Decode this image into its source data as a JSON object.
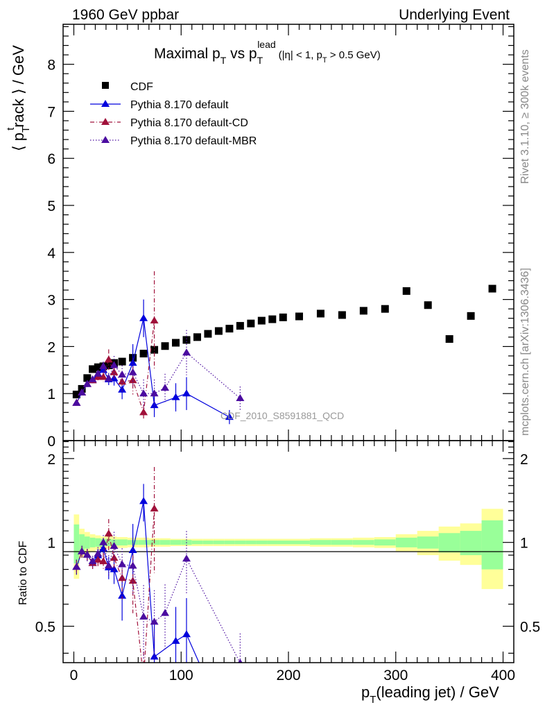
{
  "header": {
    "left": "1960 GeV ppbar",
    "right": "Underlying Event"
  },
  "side": {
    "rivet": "Rivet 3.1.10, ≥ 300k events",
    "mcplots": "mcplots.cern.ch [arXiv:1306.3436]"
  },
  "watermark": "CDF_2010_S8591881_QCD",
  "chart_data": {
    "type": "scatter",
    "title": "Maximal p_T vs p_T^lead (|η| < 1, p_T > 0.5 GeV)",
    "title_main": "Maximal p",
    "title_sub_T": "T",
    "title_vs": " vs p",
    "title_sup": "lead",
    "title_cut": "(|η| < 1, p",
    "title_cut_end": " > 0.5 GeV)",
    "xlabel": "p_T(leading jet) / GeV",
    "xlabel_parts": {
      "p": "p",
      "sub": "T",
      "rest": "(leading jet) / GeV"
    },
    "ylabel": "⟨ p_T^track ⟩ / GeV",
    "ylabel_parts": {
      "open": "⟨ p",
      "sub": "T",
      "sup": "t",
      "rest": "rack ⟩ / GeV"
    },
    "ratio_ylabel": "Ratio to CDF",
    "xlim": [
      -10,
      410
    ],
    "ylim": [
      0,
      8.85
    ],
    "ratio_ylim": [
      0.37,
      2.32
    ],
    "x_ticks": [
      0,
      100,
      200,
      300,
      400
    ],
    "y_ticks": [
      0,
      1,
      2,
      3,
      4,
      5,
      6,
      7,
      8
    ],
    "ratio_ticks": [
      0.5,
      1,
      2
    ],
    "legend": {
      "placement": "top-left"
    },
    "colors": {
      "cdf": "#000000",
      "default": "#0000dd",
      "cd": "#a0103a",
      "mbr": "#4b0ca0",
      "band_outer": "#ffff99",
      "band_inner": "#99ff99"
    },
    "series": [
      {
        "name": "CDF",
        "style": "marker",
        "x": [
          2.5,
          7.5,
          12.5,
          17.5,
          22.5,
          27.5,
          32.5,
          37.5,
          45,
          55,
          65,
          75,
          85,
          95,
          105,
          115,
          125,
          135,
          145,
          155,
          165,
          175,
          185,
          195,
          210,
          230,
          250,
          270,
          290,
          310,
          330,
          350,
          370,
          390
        ],
        "y": [
          0.98,
          1.1,
          1.33,
          1.52,
          1.56,
          1.58,
          1.6,
          1.65,
          1.68,
          1.76,
          1.85,
          1.93,
          2.01,
          2.08,
          2.14,
          2.2,
          2.27,
          2.33,
          2.38,
          2.44,
          2.49,
          2.55,
          2.58,
          2.62,
          2.64,
          2.7,
          2.67,
          2.76,
          2.8,
          3.18,
          2.88,
          2.16,
          2.65,
          3.23
        ]
      },
      {
        "name": "Pythia 8.170 default",
        "style": "solid",
        "x": [
          2.5,
          7.5,
          12.5,
          17.5,
          22.5,
          27.5,
          32.5,
          37.5,
          45,
          55,
          65,
          75,
          85,
          95,
          105,
          145
        ],
        "y": [
          0.8,
          1.02,
          1.2,
          1.28,
          1.4,
          1.5,
          1.3,
          1.32,
          1.08,
          1.65,
          2.6,
          0.75,
          null,
          0.92,
          1.0,
          0.5
        ],
        "err": [
          0.05,
          0.05,
          0.06,
          0.06,
          0.08,
          0.1,
          0.12,
          0.15,
          0.2,
          0.4,
          0.4,
          0.25,
          null,
          0.3,
          0.35,
          0.15
        ]
      },
      {
        "name": "Pythia 8.170 default-CD",
        "style": "dashdot",
        "x": [
          2.5,
          7.5,
          12.5,
          17.5,
          22.5,
          27.5,
          32.5,
          37.5,
          45,
          55,
          65,
          75
        ],
        "y": [
          0.8,
          1.02,
          1.2,
          1.28,
          1.35,
          1.35,
          1.72,
          1.45,
          1.25,
          1.28,
          0.6,
          2.55
        ],
        "err": [
          0.05,
          0.05,
          0.06,
          0.06,
          0.08,
          0.1,
          0.22,
          0.15,
          0.2,
          0.3,
          0.15,
          1.05
        ]
      },
      {
        "name": "Pythia 8.170 default-MBR",
        "style": "dotted",
        "x": [
          2.5,
          7.5,
          12.5,
          17.5,
          22.5,
          27.5,
          32.5,
          37.5,
          45,
          55,
          65,
          75,
          85,
          105,
          155
        ],
        "y": [
          0.8,
          1.02,
          1.2,
          1.3,
          1.42,
          1.58,
          1.32,
          1.6,
          1.4,
          1.45,
          1.0,
          1.0,
          1.12,
          1.87,
          0.9
        ],
        "err": [
          0.05,
          0.05,
          0.06,
          0.06,
          0.08,
          0.1,
          0.12,
          0.2,
          0.2,
          0.3,
          0.3,
          0.3,
          0.3,
          0.48,
          0.25
        ]
      }
    ],
    "ratio_band": {
      "x_edges": [
        0,
        5,
        10,
        15,
        20,
        25,
        30,
        35,
        40,
        50,
        60,
        70,
        80,
        90,
        100,
        110,
        120,
        130,
        140,
        150,
        160,
        170,
        180,
        190,
        200,
        220,
        240,
        260,
        280,
        300,
        320,
        340,
        360,
        380,
        400
      ],
      "outer": [
        0.26,
        0.12,
        0.09,
        0.07,
        0.06,
        0.05,
        0.05,
        0.05,
        0.045,
        0.04,
        0.04,
        0.035,
        0.035,
        0.03,
        0.03,
        0.03,
        0.03,
        0.03,
        0.03,
        0.03,
        0.03,
        0.03,
        0.03,
        0.03,
        0.03,
        0.035,
        0.035,
        0.04,
        0.045,
        0.07,
        0.1,
        0.14,
        0.17,
        0.32
      ],
      "inner": [
        0.16,
        0.07,
        0.05,
        0.04,
        0.035,
        0.03,
        0.03,
        0.025,
        0.025,
        0.02,
        0.02,
        0.02,
        0.02,
        0.02,
        0.02,
        0.015,
        0.015,
        0.015,
        0.015,
        0.015,
        0.015,
        0.015,
        0.015,
        0.015,
        0.015,
        0.02,
        0.02,
        0.02,
        0.025,
        0.04,
        0.05,
        0.08,
        0.1,
        0.2
      ]
    }
  }
}
